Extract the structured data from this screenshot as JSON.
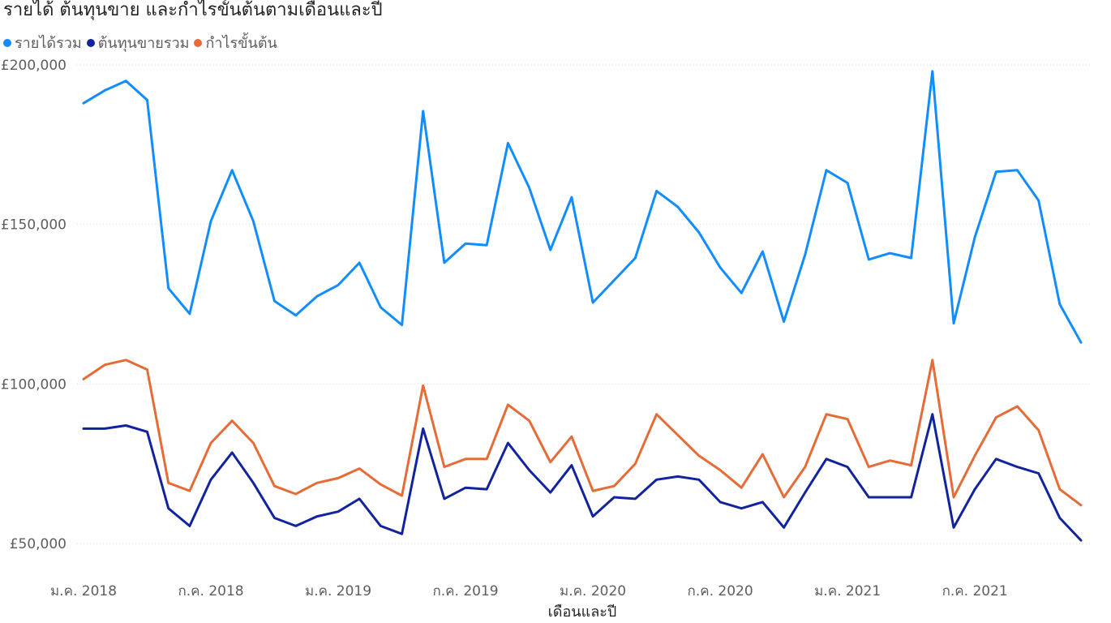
{
  "chart_data": {
    "type": "line",
    "title": "รายได้ ต้นทุนขาย และกำไรขั้นต้นตามเดือนและปี",
    "xlabel": "เดือนและปี",
    "ylabel": "",
    "x_ticks": [
      "ม.ค. 2018",
      "ก.ค. 2018",
      "ม.ค. 2019",
      "ก.ค. 2019",
      "ม.ค. 2020",
      "ก.ค. 2020",
      "ม.ค. 2021",
      "ก.ค. 2021"
    ],
    "y_ticks": [
      "£50,000",
      "£100,000",
      "£150,000",
      "£200,000"
    ],
    "y_tick_values": [
      50000,
      100000,
      150000,
      200000
    ],
    "ylim": [
      40000,
      205000
    ],
    "grid": true,
    "legend_position": "top-left",
    "x_start": "2018-01",
    "x_end": "2021-12",
    "series": [
      {
        "name": "รายได้รวม",
        "color": "#118DFF",
        "values": [
          188000,
          192000,
          195000,
          189000,
          130000,
          122000,
          151000,
          167000,
          151000,
          126000,
          121500,
          127500,
          131000,
          138000,
          124000,
          118500,
          185500,
          138000,
          144000,
          143500,
          175500,
          161500,
          142000,
          158500,
          125500,
          132500,
          139500,
          160500,
          155500,
          147500,
          136500,
          128500,
          141500,
          119500,
          140500,
          167000,
          163000,
          139000,
          141000,
          139500,
          198000,
          119000,
          146000,
          166500,
          167000,
          157500,
          125000,
          113000
        ]
      },
      {
        "name": "ต้นทุนขายรวม",
        "color": "#12239E",
        "values": [
          86000,
          86000,
          87000,
          85000,
          61000,
          55500,
          70000,
          78500,
          69000,
          58000,
          55500,
          58500,
          60000,
          64000,
          55500,
          53000,
          86000,
          64000,
          67500,
          67000,
          81500,
          73000,
          66000,
          74500,
          58500,
          64500,
          64000,
          70000,
          71000,
          70000,
          63000,
          61000,
          63000,
          55000,
          66000,
          76500,
          74000,
          64500,
          64500,
          64500,
          90500,
          55000,
          67000,
          76500,
          74000,
          72000,
          58000,
          51000
        ]
      },
      {
        "name": "กำไรขั้นต้น",
        "color": "#E66C37",
        "values": [
          101500,
          106000,
          107500,
          104500,
          69000,
          66500,
          81500,
          88500,
          81500,
          68000,
          65500,
          69000,
          70500,
          73500,
          68500,
          65000,
          99500,
          74000,
          76500,
          76500,
          93500,
          88500,
          75500,
          83500,
          66500,
          68000,
          75000,
          90500,
          84000,
          77500,
          73000,
          67500,
          78000,
          64500,
          74000,
          90500,
          89000,
          74000,
          76000,
          74500,
          107500,
          64500,
          77500,
          89500,
          93000,
          85500,
          67000,
          62000
        ]
      }
    ]
  }
}
